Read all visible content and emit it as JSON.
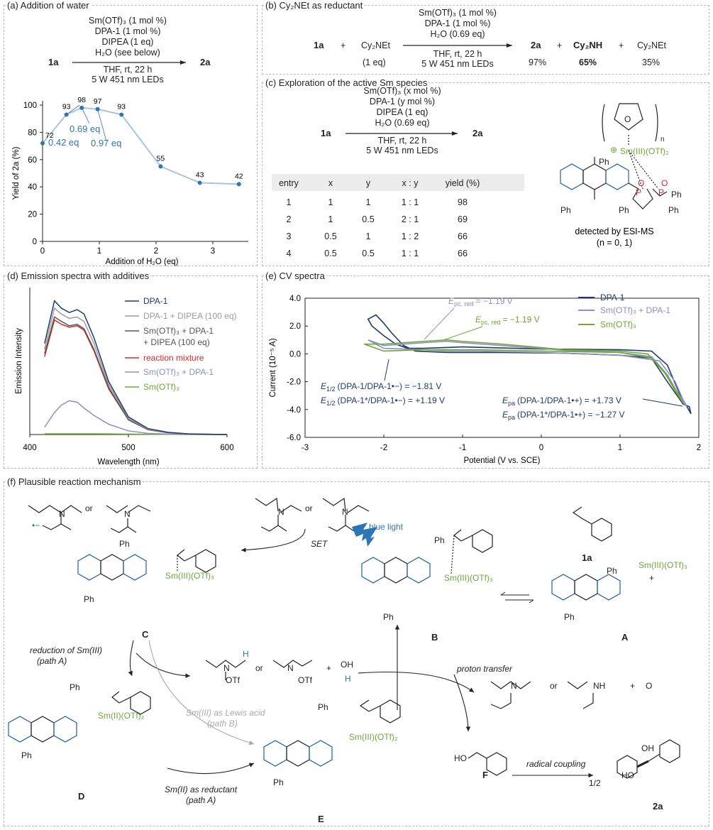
{
  "panels": {
    "a": "(a) Addition of water",
    "b": "(b) Cy₂NEt as reductant",
    "c": "(c) Exploration of the active Sm species",
    "d": "(d) Emission spectra with additives",
    "e": "(e) CV spectra",
    "f": "(f) Plausible reaction mechanism"
  },
  "a": {
    "start": "1a",
    "product": "2a",
    "above": [
      "Sm(OTf)₃ (1 mol %)",
      "DPA-1 (1 mol %)",
      "DIPEA (1 eq)",
      "H₂O (see below)"
    ],
    "below": [
      "THF, rt, 22 h",
      "5 W 451 nm LEDs"
    ]
  },
  "b": {
    "r1": "1a",
    "plus": "+",
    "r2": "Cy₂NEt",
    "r2_eq": "(1 eq)",
    "above": [
      "Sm(OTf)₃ (1 mol %)",
      "DPA-1 (1 mol %)",
      "H₂O (0.69 eq)"
    ],
    "below": [
      "THF, rt, 22 h",
      "5 W 451 nm LEDs"
    ],
    "p1": "2a",
    "p1_y": "97%",
    "p2": "Cy₂NH",
    "p2_y": "65%",
    "p3": "Cy₂NEt",
    "p3_y": "35%"
  },
  "c": {
    "start": "1a",
    "product": "2a",
    "above": [
      "Sm(OTf)₃ (x mol %)",
      "DPA-1 (y mol %)",
      "DIPEA (1 eq)",
      "H₂O (0.69 eq)"
    ],
    "below": [
      "THF, rt, 22 h",
      "5 W 451 nm LEDs"
    ],
    "headers": [
      "entry",
      "x",
      "y",
      "x : y",
      "yield (%)"
    ],
    "rows": [
      [
        "1",
        "1",
        "1",
        "1 : 1",
        "98"
      ],
      [
        "2",
        "1",
        "0.5",
        "2 : 1",
        "69"
      ],
      [
        "3",
        "0.5",
        "1",
        "1 : 2",
        "66"
      ],
      [
        "4",
        "0.5",
        "0.5",
        "1 : 1",
        "66"
      ]
    ],
    "complex_sm": "Sm(III)(OTf)₂",
    "complex_n": "n",
    "complex_charge": "⊕",
    "detected": "detected by ESI-MS",
    "n_note": "(n = 0, 1)"
  },
  "chart_data": [
    {
      "type": "line",
      "panel": "a",
      "xlabel": "Addition of H₂O (eq)",
      "ylabel": "Yield of 2a (%)",
      "xlim": [
        0,
        3.5
      ],
      "ylim": [
        0,
        100
      ],
      "xticks": [
        "0",
        "1",
        "2",
        "3"
      ],
      "yticks": [
        "0",
        "20",
        "40",
        "60",
        "80",
        "100"
      ],
      "x": [
        0,
        0.42,
        0.69,
        0.97,
        1.39,
        2.08,
        2.77,
        3.46
      ],
      "y": [
        72,
        93,
        98,
        97,
        93,
        55,
        43,
        42
      ],
      "annotations": [
        "0.42 eq",
        "0.69 eq",
        "0.97 eq"
      ],
      "color": "#a8c4dd",
      "point_color": "#2e75b6"
    },
    {
      "type": "line",
      "panel": "d",
      "xlabel": "Wavelength (nm)",
      "ylabel": "Emission Intensity",
      "xlim": [
        400,
        600
      ],
      "xticks": [
        "400",
        "500",
        "600"
      ],
      "x": [
        415,
        425,
        432,
        440,
        448,
        455,
        465,
        480,
        500,
        520,
        540,
        560,
        580,
        600
      ],
      "series": [
        {
          "name": "DPA-1",
          "color": "#1f3a68",
          "values": [
            0.62,
            0.91,
            0.86,
            0.83,
            0.85,
            0.82,
            0.66,
            0.36,
            0.12,
            0.04,
            0.015,
            0.005,
            0.002,
            0.0
          ]
        },
        {
          "name": "DPA-1 + DIPEA (100 eq)",
          "color": "#9b9b9b",
          "values": [
            0.58,
            0.86,
            0.82,
            0.79,
            0.8,
            0.77,
            0.62,
            0.34,
            0.11,
            0.035,
            0.013,
            0.004,
            0.002,
            0.0
          ]
        },
        {
          "name": "Sm(OTf)₃ + DPA-1\n+ DIPEA (100 eq)",
          "color": "#555555",
          "values": [
            0.55,
            0.8,
            0.77,
            0.74,
            0.75,
            0.72,
            0.58,
            0.32,
            0.1,
            0.033,
            0.012,
            0.004,
            0.002,
            0.0
          ]
        },
        {
          "name": "reaction mixture",
          "color": "#d42a2a",
          "values": [
            0.53,
            0.78,
            0.75,
            0.73,
            0.74,
            0.71,
            0.57,
            0.31,
            0.1,
            0.032,
            0.012,
            0.004,
            0.002,
            0.0
          ]
        },
        {
          "name": "Sm(OTf)₃ + DPA-1",
          "color": "#8c8fc0",
          "values": [
            0.05,
            0.15,
            0.2,
            0.23,
            0.22,
            0.18,
            0.13,
            0.07,
            0.025,
            0.008,
            0.003,
            0.001,
            0.0,
            0.0
          ]
        },
        {
          "name": "Sm(OTf)₃",
          "color": "#6fa63a",
          "values": [
            0.005,
            0.005,
            0.005,
            0.005,
            0.005,
            0.005,
            0.005,
            0.004,
            0.003,
            0.002,
            0.001,
            0.0,
            0.0,
            0.0
          ]
        }
      ]
    },
    {
      "type": "line",
      "panel": "e",
      "xlabel": "Potential (V vs. SCE)",
      "ylabel": "Current (10⁻⁵ A)",
      "xlim": [
        -3,
        2
      ],
      "ylim": [
        -6,
        4
      ],
      "xticks": [
        "-3",
        "-2",
        "-1",
        "0",
        "1",
        "2"
      ],
      "yticks": [
        "-6.0",
        "-4.0",
        "-2.0",
        "0.0",
        "2.0",
        "4.0"
      ],
      "series": [
        {
          "name": "DPA-1",
          "color": "#1f3a68",
          "x": [
            0.3,
            -0.5,
            -1.2,
            -1.6,
            -1.75,
            -1.9,
            -2.0,
            -2.1,
            -2.2,
            -2.15,
            -2.0,
            -1.85,
            -1.7,
            -1.5,
            -1.0,
            0,
            1.0,
            1.4,
            1.6,
            1.75,
            1.85,
            1.9,
            1.88,
            1.8,
            1.6,
            1.4,
            1.0,
            0.3
          ],
          "y": [
            0.05,
            0.1,
            0.1,
            0.2,
            0.6,
            1.5,
            2.2,
            2.8,
            2.5,
            2.0,
            1.3,
            0.7,
            0.4,
            0.4,
            0.5,
            0.35,
            0.3,
            0.2,
            -0.8,
            -2.8,
            -3.8,
            -4.3,
            -3.8,
            -3.6,
            -2.0,
            -0.3,
            -0.1,
            0.05
          ]
        },
        {
          "name": "Sm(OTf)₃ + DPA-1",
          "color": "#8c8fc0",
          "x": [
            0.3,
            -0.5,
            -1.0,
            -1.2,
            -1.5,
            -2.0,
            -2.2,
            -2.0,
            -1.5,
            -1.2,
            -0.8,
            0,
            1.0,
            1.5,
            1.7,
            1.8,
            1.85,
            1.8,
            1.6,
            1.4,
            1.0,
            0.3
          ],
          "y": [
            0.25,
            0.6,
            0.8,
            0.9,
            0.8,
            0.6,
            1.0,
            0.4,
            0.3,
            0.2,
            0.2,
            0.1,
            -0.1,
            -0.5,
            -2.0,
            -3.3,
            -3.8,
            -3.5,
            -1.5,
            -0.2,
            0.1,
            0.25
          ]
        },
        {
          "name": "Sm(OTf)₃",
          "color": "#6fa63a",
          "x": [
            0.3,
            -0.5,
            -1.0,
            -1.2,
            -1.5,
            -2.0,
            -2.25,
            -2.0,
            -1.5,
            -1.2,
            -0.8,
            0,
            1.0,
            1.4,
            1.6,
            1.75,
            1.8,
            1.75,
            1.55,
            1.35,
            1.0,
            0.3
          ],
          "y": [
            0.3,
            0.7,
            0.9,
            1.0,
            0.9,
            0.7,
            0.7,
            0.2,
            0.3,
            0.3,
            0.3,
            0.2,
            0.1,
            -0.3,
            -1.6,
            -3.0,
            -3.5,
            -3.1,
            -1.2,
            0.0,
            0.2,
            0.3
          ]
        }
      ],
      "annotations": [
        {
          "text": "E",
          "sub": "pc, red",
          "value": "= −1.19 V",
          "color": "#8c8fc0"
        },
        {
          "text": "E",
          "sub": "pc, red",
          "value": "= −1.19 V",
          "color": "#6fa63a"
        },
        {
          "text": "E",
          "sub": "1/2",
          "value": "(DPA-1/DPA-1•−) = −1.81 V",
          "color": "#1f3a68"
        },
        {
          "text": "E",
          "sub": "1/2",
          "value": "(DPA-1*/DPA-1•−) = +1.19 V",
          "color": "#1f3a68"
        },
        {
          "text": "E",
          "sub": "pa",
          "value": "(DPA-1/DPA-1•+) = +1.73 V",
          "color": "#1f3a68"
        },
        {
          "text": "E",
          "sub": "pa",
          "value": "(DPA-1*/DPA-1•+) = −1.27 V",
          "color": "#1f3a68"
        }
      ]
    }
  ],
  "mech": {
    "or": "or",
    "plus": "+",
    "ph": "Ph",
    "p": "P",
    "o": "O",
    "sm_iii_otf3": "Sm(III)(OTf)₃",
    "sm_iii_otf": "Sm(III)(OTf)₃",
    "sm_ii_otf2": "Sm(II)(OTf)₂",
    "sm_iii_otf2": "Sm(III)(OTf)₂",
    "blue_light": "blue light",
    "set": "SET",
    "label_1a": "1a",
    "label_A": "A",
    "label_B": "B",
    "label_C": "C",
    "label_D": "D",
    "label_E": "E",
    "label_F": "F",
    "label_2a": "2a",
    "reduction": "reduction of Sm(III)",
    "path_a": "(path A)",
    "lewis": "Sm(III) as Lewis acid",
    "path_b": "(path B)",
    "reductant": "Sm(II) as reductant",
    "proton_transfer": "proton transfer",
    "radical_coupling": "radical coupling",
    "half": "1/2",
    "otf": "OTf",
    "oh": "OH",
    "ho": "HO",
    "h": "H",
    "n": "N",
    "nh": "NH",
    "radical_minus": "•−"
  }
}
